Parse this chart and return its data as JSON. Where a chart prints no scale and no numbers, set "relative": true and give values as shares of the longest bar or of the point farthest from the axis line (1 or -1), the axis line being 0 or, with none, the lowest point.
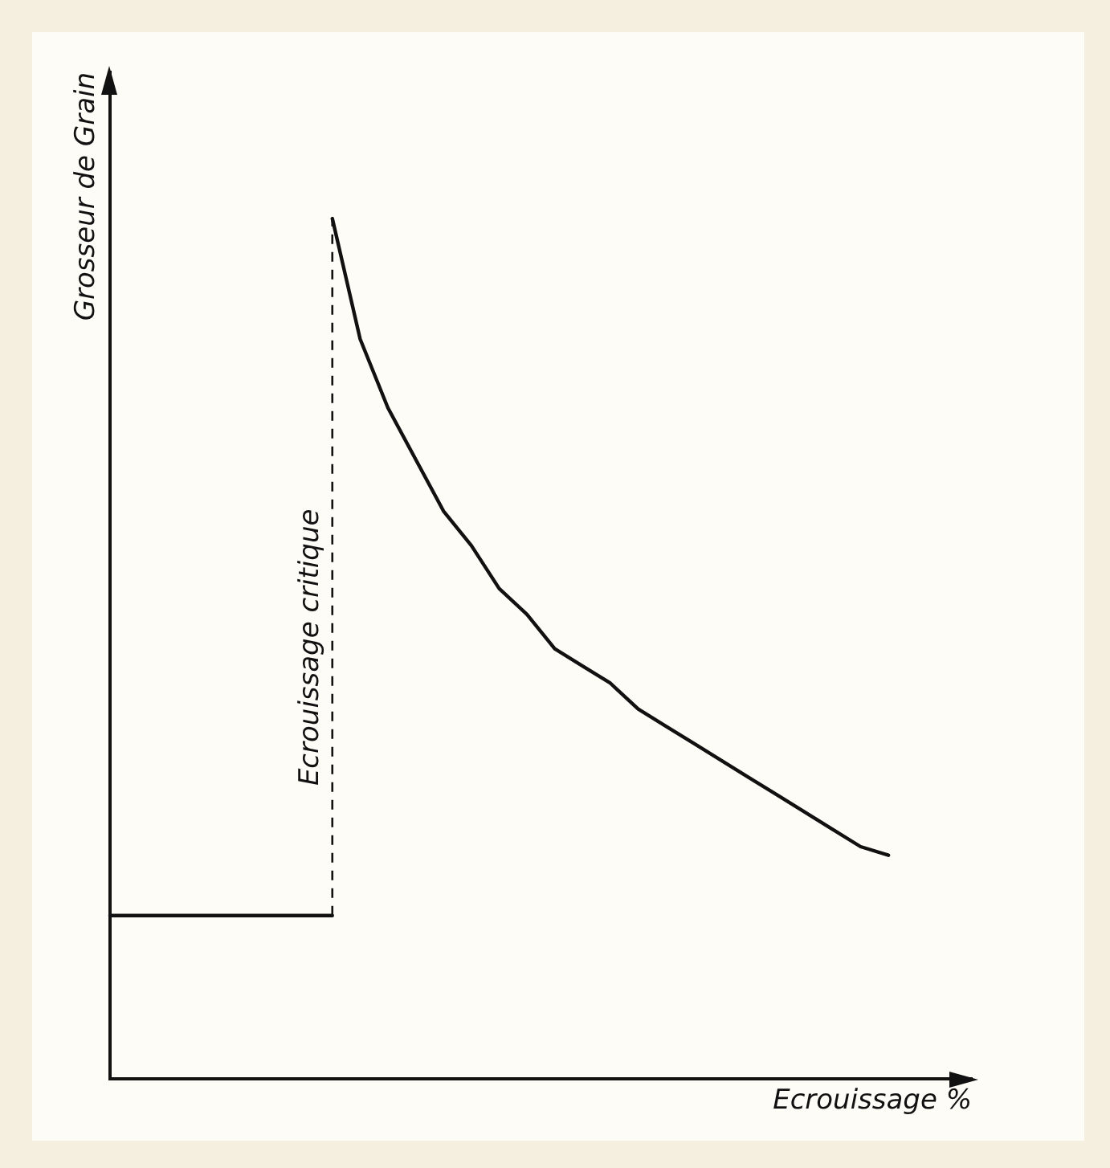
{
  "chart_data": {
    "type": "line",
    "relative": true,
    "xlabel": "Ecrouissage %",
    "ylabel": "Grosseur de Grain",
    "categories": [
      null,
      null,
      null,
      null,
      null,
      null,
      null,
      null,
      null,
      null,
      null,
      null,
      null,
      null,
      null,
      null,
      null,
      null,
      null,
      null,
      null,
      null,
      null,
      null,
      null,
      null,
      null,
      null,
      null,
      null,
      null,
      null
    ],
    "tick_labels": false,
    "grid": false,
    "legend": false,
    "marker": "none",
    "line_style": "solid",
    "series": [
      {
        "color": "#111111",
        "values": [
          0.19,
          0.19,
          0.19,
          0.19,
          0.19,
          0.19,
          0.19,
          0.19,
          0.19,
          null,
          null,
          null,
          null,
          null,
          null,
          null,
          null,
          null,
          null,
          null,
          null,
          null,
          null,
          null,
          null,
          null,
          null,
          null,
          null,
          null,
          null,
          null
        ]
      },
      {
        "color": "#111111",
        "values": [
          null,
          null,
          null,
          null,
          null,
          null,
          null,
          null,
          1,
          0.86,
          0.78,
          0.72,
          0.66,
          0.62,
          0.57,
          0.54,
          0.5,
          0.48,
          0.46,
          0.43,
          0.41,
          0.39,
          0.37,
          0.35,
          0.33,
          0.31,
          0.29,
          0.27,
          0.26,
          null,
          null,
          null
        ]
      }
    ],
    "annotations": [
      "Ecrouissage critique"
    ]
  }
}
